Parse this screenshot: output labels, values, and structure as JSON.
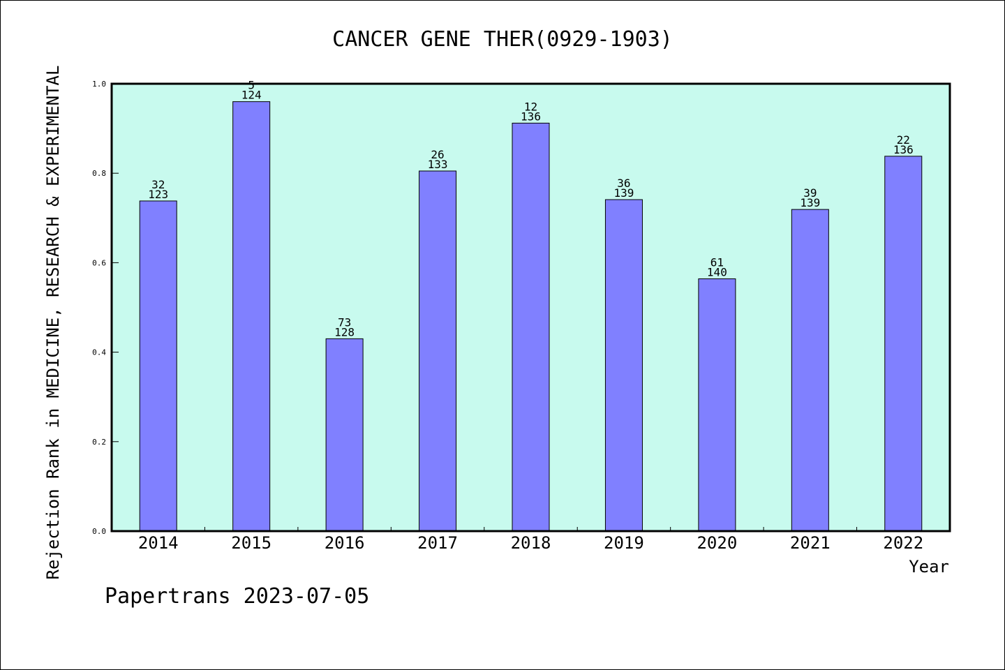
{
  "chart_data": {
    "type": "bar",
    "title": "CANCER GENE THER(0929-1903)",
    "xlabel": "Year",
    "ylabel": "Rejection Rank in MEDICINE, RESEARCH & EXPERIMENTAL",
    "ylim": [
      0,
      1.0
    ],
    "yticks": [
      "0.0",
      "0.2",
      "0.4",
      "0.6",
      "0.8",
      "1.0"
    ],
    "grid": false,
    "categories": [
      "2014",
      "2015",
      "2016",
      "2017",
      "2018",
      "2019",
      "2020",
      "2021",
      "2022"
    ],
    "values": [
      0.738,
      0.96,
      0.43,
      0.805,
      0.912,
      0.741,
      0.564,
      0.719,
      0.838
    ],
    "labels_top": [
      "32",
      "5",
      "73",
      "26",
      "12",
      "36",
      "61",
      "39",
      "22"
    ],
    "labels_bottom": [
      "123",
      "124",
      "128",
      "133",
      "136",
      "139",
      "140",
      "139",
      "136"
    ],
    "colors": {
      "plot_bg": "#c8faee",
      "bar": "#8080ff",
      "bar_edge": "#000000"
    }
  },
  "footer": {
    "credit": "Papertrans 2023-07-05"
  }
}
